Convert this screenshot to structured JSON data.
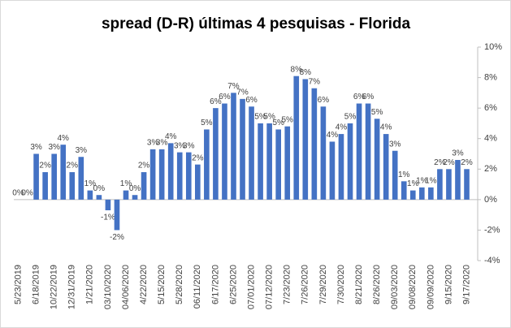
{
  "chart_data": {
    "type": "bar",
    "title": "spread (D-R) últimas 4 pesquisas - Florida",
    "categories": [
      "5/23/2019",
      null,
      "6/18/2019",
      null,
      "10/22/2019",
      null,
      "12/31/2019",
      null,
      "1/21/2020",
      null,
      "03/10/2020",
      null,
      "04/06/2020",
      null,
      "4/22/2020",
      null,
      "5/15/2020",
      null,
      "5/28/2020",
      null,
      "06/11/2020",
      null,
      "6/17/2020",
      null,
      "6/25/2020",
      null,
      "07/01/2020",
      null,
      "07/12/2020",
      null,
      "7/23/2020",
      null,
      "7/26/2020",
      null,
      "7/29/2020",
      null,
      "7/30/2020",
      null,
      "8/21/2020",
      null,
      "8/26/2020",
      null,
      "09/03/2020",
      null,
      "09/08/2020",
      null,
      "09/09/2020",
      null,
      "9/15/2020",
      null,
      "9/17/2020"
    ],
    "values": [
      0,
      0,
      3.0,
      1.8,
      3.0,
      3.6,
      1.8,
      2.8,
      0.6,
      0.3,
      -0.7,
      -2.0,
      0.6,
      0.3,
      1.8,
      3.3,
      3.3,
      3.7,
      3.1,
      3.1,
      2.3,
      4.6,
      6.0,
      6.3,
      7.0,
      6.6,
      6.1,
      5.0,
      5.0,
      4.6,
      4.8,
      8.1,
      7.9,
      7.3,
      6.1,
      3.8,
      4.3,
      5.0,
      6.3,
      6.3,
      5.3,
      4.3,
      3.2,
      1.2,
      0.6,
      0.8,
      0.8,
      2.0,
      2.0,
      2.6,
      2.0
    ],
    "value_labels": [
      "0%",
      "0%",
      "3%",
      "2%",
      "3%",
      "4%",
      "2%",
      "3%",
      "1%",
      "0%",
      "-1%",
      "-2%",
      "1%",
      "0%",
      "2%",
      "3%",
      "3%",
      "4%",
      "3%",
      "3%",
      "2%",
      "5%",
      "6%",
      "6%",
      "7%",
      "7%",
      "6%",
      "5%",
      "5%",
      "5%",
      "5%",
      "8%",
      "8%",
      "7%",
      "6%",
      "4%",
      "4%",
      "5%",
      "6%",
      "6%",
      "5%",
      "4%",
      "3%",
      "1%",
      "1%",
      "1%",
      "1%",
      "2%",
      "2%",
      "3%",
      "2%"
    ],
    "color": "#4472c4",
    "ylim": [
      -4,
      10
    ],
    "yticks": [
      {
        "value": -4,
        "label": "-4%"
      },
      {
        "value": -2,
        "label": "-2%"
      },
      {
        "value": 0,
        "label": "0%"
      },
      {
        "value": 2,
        "label": "2%"
      },
      {
        "value": 4,
        "label": "4%"
      },
      {
        "value": 6,
        "label": "6%"
      },
      {
        "value": 8,
        "label": "8%"
      },
      {
        "value": 10,
        "label": "10%"
      }
    ],
    "y_axis_side": "right"
  }
}
